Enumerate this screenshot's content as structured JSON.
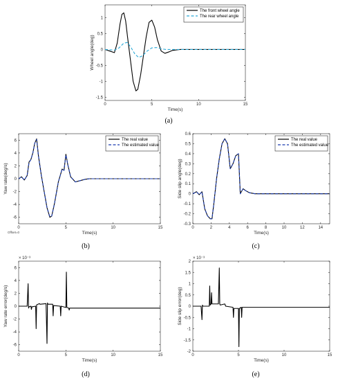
{
  "chart_data": [
    {
      "id": "a",
      "type": "line",
      "panel_label": "(a)",
      "xlabel": "Time(s)",
      "ylabel": "Wheel angle(deg)",
      "xlim": [
        0,
        15
      ],
      "ylim": [
        -1.6,
        1.4
      ],
      "xticks": [
        0,
        5,
        10,
        15
      ],
      "yticks": [
        -1.5,
        -1,
        -0.5,
        0,
        0.5,
        1
      ],
      "legend": "top-right",
      "series": [
        {
          "name": "The front wheel angle",
          "color": "#000000",
          "dash": "",
          "x": [
            0,
            0.5,
            1,
            1.3,
            1.6,
            1.8,
            2,
            2.2,
            2.4,
            2.7,
            3,
            3.3,
            3.5,
            3.8,
            4.1,
            4.4,
            4.7,
            5,
            5.3,
            5.6,
            6,
            6.4,
            6.8,
            7.2,
            8,
            10,
            15
          ],
          "y": [
            0,
            -0.05,
            -0.1,
            0.2,
            0.8,
            1.1,
            1.15,
            0.9,
            0.4,
            -0.3,
            -1.0,
            -1.3,
            -1.25,
            -0.8,
            -0.2,
            0.4,
            0.85,
            0.92,
            0.7,
            0.3,
            -0.05,
            -0.12,
            -0.08,
            -0.03,
            0,
            0,
            0
          ]
        },
        {
          "name": "The rear wheel angle",
          "color": "#28a9d8",
          "dash": "4,2.5",
          "x": [
            0,
            1,
            1.5,
            2,
            2.4,
            2.8,
            3.2,
            3.6,
            4,
            4.5,
            5,
            5.5,
            6,
            6.5,
            7,
            8,
            15
          ],
          "y": [
            0,
            -0.02,
            0.05,
            0.2,
            0.22,
            0.05,
            -0.15,
            -0.25,
            -0.2,
            -0.05,
            0.05,
            0.06,
            0.02,
            0,
            0,
            0,
            0
          ]
        }
      ]
    },
    {
      "id": "b",
      "type": "line",
      "panel_label": "(b)",
      "xlabel": "Time(s)",
      "ylabel": "Yaw rate(deg/s)",
      "xlim": [
        0,
        15
      ],
      "ylim": [
        -7,
        7
      ],
      "xticks": [
        0,
        5,
        10,
        15
      ],
      "yticks": [
        -6,
        -4,
        -2,
        0,
        2,
        4,
        6
      ],
      "legend": "top-right",
      "note": "Offset=0",
      "series": [
        {
          "name": "The real value",
          "color": "#000000",
          "dash": "",
          "x": [
            0,
            0.3,
            0.6,
            0.9,
            1.1,
            1.3,
            1.5,
            1.7,
            1.9,
            2.1,
            2.4,
            2.7,
            3,
            3.3,
            3.5,
            3.8,
            4.2,
            4.6,
            4.8,
            5,
            5.2,
            5.5,
            6,
            6.5,
            7,
            7.5,
            8,
            9,
            10,
            15
          ],
          "y": [
            0,
            0.3,
            -0.2,
            0.5,
            2.6,
            3,
            4,
            5.5,
            6.2,
            3.5,
            0.5,
            -2,
            -4.5,
            -6,
            -5.8,
            -3.8,
            -0.5,
            1.5,
            1.3,
            3.8,
            2.2,
            0.3,
            -0.5,
            -0.3,
            -0.1,
            0,
            0,
            0,
            0,
            0
          ]
        },
        {
          "name": "The estimated value",
          "color": "#1a3bb0",
          "dash": "4,2.5",
          "x": [
            0,
            0.3,
            0.6,
            0.9,
            1.1,
            1.3,
            1.5,
            1.7,
            1.9,
            2.1,
            2.4,
            2.7,
            3,
            3.3,
            3.5,
            3.8,
            4.2,
            4.6,
            4.8,
            5,
            5.2,
            5.5,
            6,
            6.5,
            7,
            7.5,
            8,
            9,
            10,
            15
          ],
          "y": [
            0,
            0.3,
            -0.2,
            0.5,
            2.5,
            3,
            4,
            5.5,
            6.1,
            3.5,
            0.5,
            -2,
            -4.5,
            -5.9,
            -5.8,
            -3.8,
            -0.5,
            1.5,
            1.3,
            3.7,
            2.2,
            0.3,
            -0.5,
            -0.3,
            -0.1,
            0,
            0,
            0,
            0,
            0
          ]
        }
      ]
    },
    {
      "id": "c",
      "type": "line",
      "panel_label": "(c)",
      "xlabel": "Time(s)",
      "ylabel": "Side slip angle(deg)",
      "xlim": [
        0,
        15
      ],
      "ylim": [
        -0.3,
        0.6
      ],
      "xticks": [
        0,
        2,
        4,
        6,
        8,
        10,
        12,
        14
      ],
      "yticks": [
        -0.3,
        -0.2,
        -0.1,
        0,
        0.1,
        0.2,
        0.3,
        0.4,
        0.5,
        0.6
      ],
      "legend": "top-right",
      "series": [
        {
          "name": "The real value",
          "color": "#000000",
          "dash": "",
          "x": [
            0,
            0.4,
            0.7,
            1,
            1.3,
            1.6,
            1.9,
            2.1,
            2.3,
            2.6,
            2.9,
            3.2,
            3.5,
            3.8,
            4.1,
            4.4,
            4.7,
            5,
            5.2,
            5.5,
            5.8,
            6.2,
            6.8,
            7.5,
            15
          ],
          "y": [
            0,
            0.02,
            -0.01,
            0.02,
            -0.15,
            -0.22,
            -0.25,
            -0.25,
            -0.1,
            0.15,
            0.35,
            0.5,
            0.55,
            0.5,
            0.25,
            0.3,
            0.38,
            0.4,
            0,
            0.05,
            0.03,
            0.01,
            0,
            0,
            0
          ]
        },
        {
          "name": "The estimated value",
          "color": "#1a3bb0",
          "dash": "4,2.5",
          "x": [
            0,
            0.4,
            0.7,
            1,
            1.3,
            1.6,
            1.9,
            2.1,
            2.3,
            2.6,
            2.9,
            3.2,
            3.5,
            3.8,
            4.1,
            4.4,
            4.7,
            5,
            5.2,
            5.5,
            5.8,
            6.2,
            6.8,
            7.5,
            15
          ],
          "y": [
            0,
            0.02,
            -0.01,
            0.02,
            -0.15,
            -0.22,
            -0.25,
            -0.25,
            -0.1,
            0.15,
            0.35,
            0.5,
            0.55,
            0.5,
            0.25,
            0.3,
            0.38,
            0.4,
            0,
            0.05,
            0.03,
            0.01,
            0,
            0,
            0
          ]
        }
      ]
    },
    {
      "id": "d",
      "type": "line",
      "panel_label": "(d)",
      "xlabel": "Time(s)",
      "ylabel": "Yaw rate error(deg/s)",
      "exponent": "× 10⁻³",
      "xlim": [
        0,
        15
      ],
      "ylim": [
        -7,
        7
      ],
      "xticks": [
        0,
        5,
        10,
        15
      ],
      "yticks": [
        -6,
        -4,
        -2,
        0,
        2,
        4,
        6
      ],
      "series": [
        {
          "name": "",
          "color": "#000000",
          "dash": "",
          "x": [
            0,
            0.9,
            1,
            1.05,
            1.1,
            1.3,
            1.35,
            1.4,
            1.8,
            1.85,
            1.9,
            2.2,
            2.25,
            2.3,
            2.9,
            3.0,
            3.05,
            3.1,
            3.6,
            3.65,
            3.7,
            4.4,
            4.45,
            4.5,
            5.0,
            5.05,
            5.1,
            5.3,
            5.35,
            5.4,
            6,
            7,
            8,
            9,
            10,
            11,
            12,
            13,
            14,
            15
          ],
          "y": [
            0,
            0,
            3.5,
            -0.3,
            -0.1,
            0,
            -0.5,
            -0.1,
            0,
            -3.5,
            0.2,
            0.4,
            0.3,
            0.3,
            0.4,
            -5.8,
            0.5,
            0.3,
            0.3,
            -1.5,
            0.1,
            0,
            -1.5,
            0,
            -0.2,
            5.3,
            -0.2,
            -0.3,
            -0.6,
            -0.3,
            -0.3,
            -0.3,
            -0.3,
            -0.3,
            -0.3,
            -0.3,
            -0.3,
            -0.3,
            -0.3,
            -0.3
          ]
        }
      ]
    },
    {
      "id": "e",
      "type": "line",
      "panel_label": "(e)",
      "xlabel": "Time(s)",
      "ylabel": "Side slip error(deg)",
      "exponent": "× 10⁻³",
      "xlim": [
        0,
        15
      ],
      "ylim": [
        -2,
        2
      ],
      "xticks": [
        0,
        5,
        10,
        15
      ],
      "yticks": [
        -2,
        -1.5,
        -1,
        -0.5,
        0,
        0.5,
        1,
        1.5,
        2
      ],
      "series": [
        {
          "name": "",
          "color": "#000000",
          "dash": "",
          "x": [
            0,
            0.9,
            1.0,
            1.05,
            1.1,
            1.8,
            1.85,
            1.9,
            2.0,
            2.05,
            2.1,
            2.8,
            2.9,
            2.95,
            3.0,
            3.5,
            3.55,
            3.6,
            4.4,
            4.45,
            4.5,
            5.0,
            5.05,
            5.1,
            5.3,
            5.35,
            5.4,
            6,
            7,
            8,
            9,
            10,
            11,
            12,
            13,
            14,
            15
          ],
          "y": [
            0,
            0,
            -0.6,
            0.05,
            0,
            0,
            0.9,
            0.05,
            0.1,
            0.6,
            0.1,
            0.1,
            1.7,
            0.1,
            0.05,
            0.1,
            0.05,
            0,
            -0.05,
            -0.5,
            -0.1,
            -0.1,
            -1.8,
            -0.1,
            -0.05,
            -0.5,
            -0.05,
            -0.05,
            -0.05,
            -0.05,
            -0.05,
            -0.05,
            -0.05,
            -0.05,
            -0.05,
            -0.05,
            -0.05
          ]
        }
      ]
    }
  ]
}
